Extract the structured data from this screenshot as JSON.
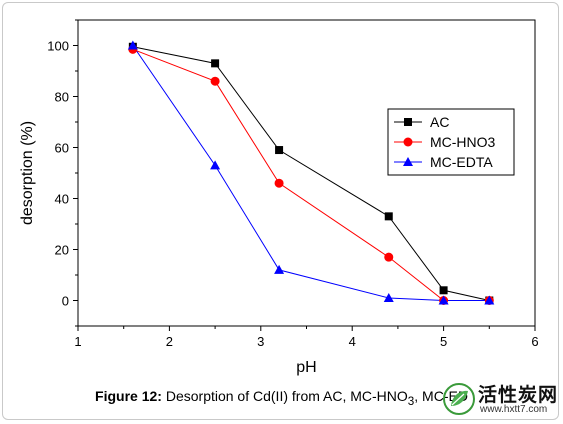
{
  "chart_data": {
    "type": "line",
    "xlabel": "pH",
    "ylabel": "desorption (%)",
    "xlim": [
      1,
      6
    ],
    "ylim": [
      -10,
      110
    ],
    "xticks": [
      1,
      2,
      3,
      4,
      5,
      6
    ],
    "yticks": [
      0,
      20,
      40,
      60,
      80,
      100
    ],
    "legend_position": "right",
    "series": [
      {
        "name": "AC",
        "color": "#000000",
        "marker": "square",
        "x": [
          1.6,
          2.5,
          3.2,
          4.4,
          5.0,
          5.5
        ],
        "y": [
          99.5,
          93,
          59,
          33,
          4,
          0
        ]
      },
      {
        "name": "MC-HNO3",
        "color": "#ff0000",
        "marker": "circle",
        "x": [
          1.6,
          2.5,
          3.2,
          4.4,
          5.0,
          5.5
        ],
        "y": [
          98.5,
          86,
          46,
          17,
          0,
          0
        ]
      },
      {
        "name": "MC-EDTA",
        "color": "#0000ff",
        "marker": "triangle",
        "x": [
          1.6,
          2.5,
          3.2,
          4.4,
          5.0,
          5.5
        ],
        "y": [
          100,
          53,
          12,
          1,
          0,
          0
        ]
      }
    ]
  },
  "caption": {
    "label": "Figure 12:",
    "text_before_sub": " Desorption of Cd(II) from AC, MC-HNO",
    "sub": "3",
    "text_after_sub": ", MC-ED"
  },
  "watermark": {
    "title": "活性炭网",
    "url": "www.hxtt7.com"
  }
}
